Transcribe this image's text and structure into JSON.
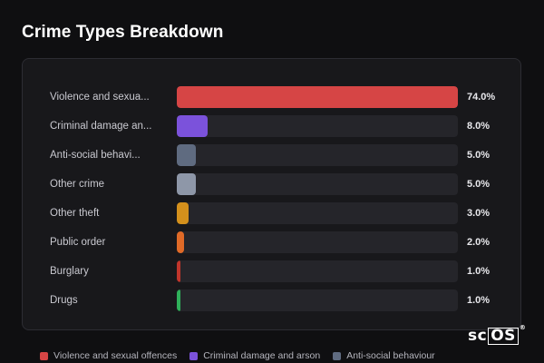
{
  "title": "Crime Types Breakdown",
  "logo": {
    "main": "sc",
    "boxed": "OS",
    "mark": "®"
  },
  "chart_data": {
    "type": "bar",
    "orientation": "horizontal",
    "title": "Crime Types Breakdown",
    "xlim": [
      0,
      74
    ],
    "categories": [
      "Violence and sexual offences",
      "Criminal damage and arson",
      "Anti-social behaviour",
      "Other crime",
      "Other theft",
      "Public order",
      "Burglary",
      "Drugs"
    ],
    "display_labels": [
      "Violence and sexua...",
      "Criminal damage an...",
      "Anti-social behavi...",
      "Other crime",
      "Other theft",
      "Public order",
      "Burglary",
      "Drugs"
    ],
    "values": [
      74.0,
      8.0,
      5.0,
      5.0,
      3.0,
      2.0,
      1.0,
      1.0
    ],
    "value_labels": [
      "74.0%",
      "8.0%",
      "5.0%",
      "5.0%",
      "3.0%",
      "2.0%",
      "1.0%",
      "1.0%"
    ],
    "colors": [
      "#d64545",
      "#7b52db",
      "#5f6b80",
      "#8e97a8",
      "#d4901c",
      "#e06a27",
      "#c0352b",
      "#2fb05a"
    ],
    "legend": [
      {
        "label": "Violence and sexual offences",
        "color": "#d64545"
      },
      {
        "label": "Criminal damage and arson",
        "color": "#7b52db"
      },
      {
        "label": "Anti-social behaviour",
        "color": "#5f6b80"
      }
    ]
  }
}
